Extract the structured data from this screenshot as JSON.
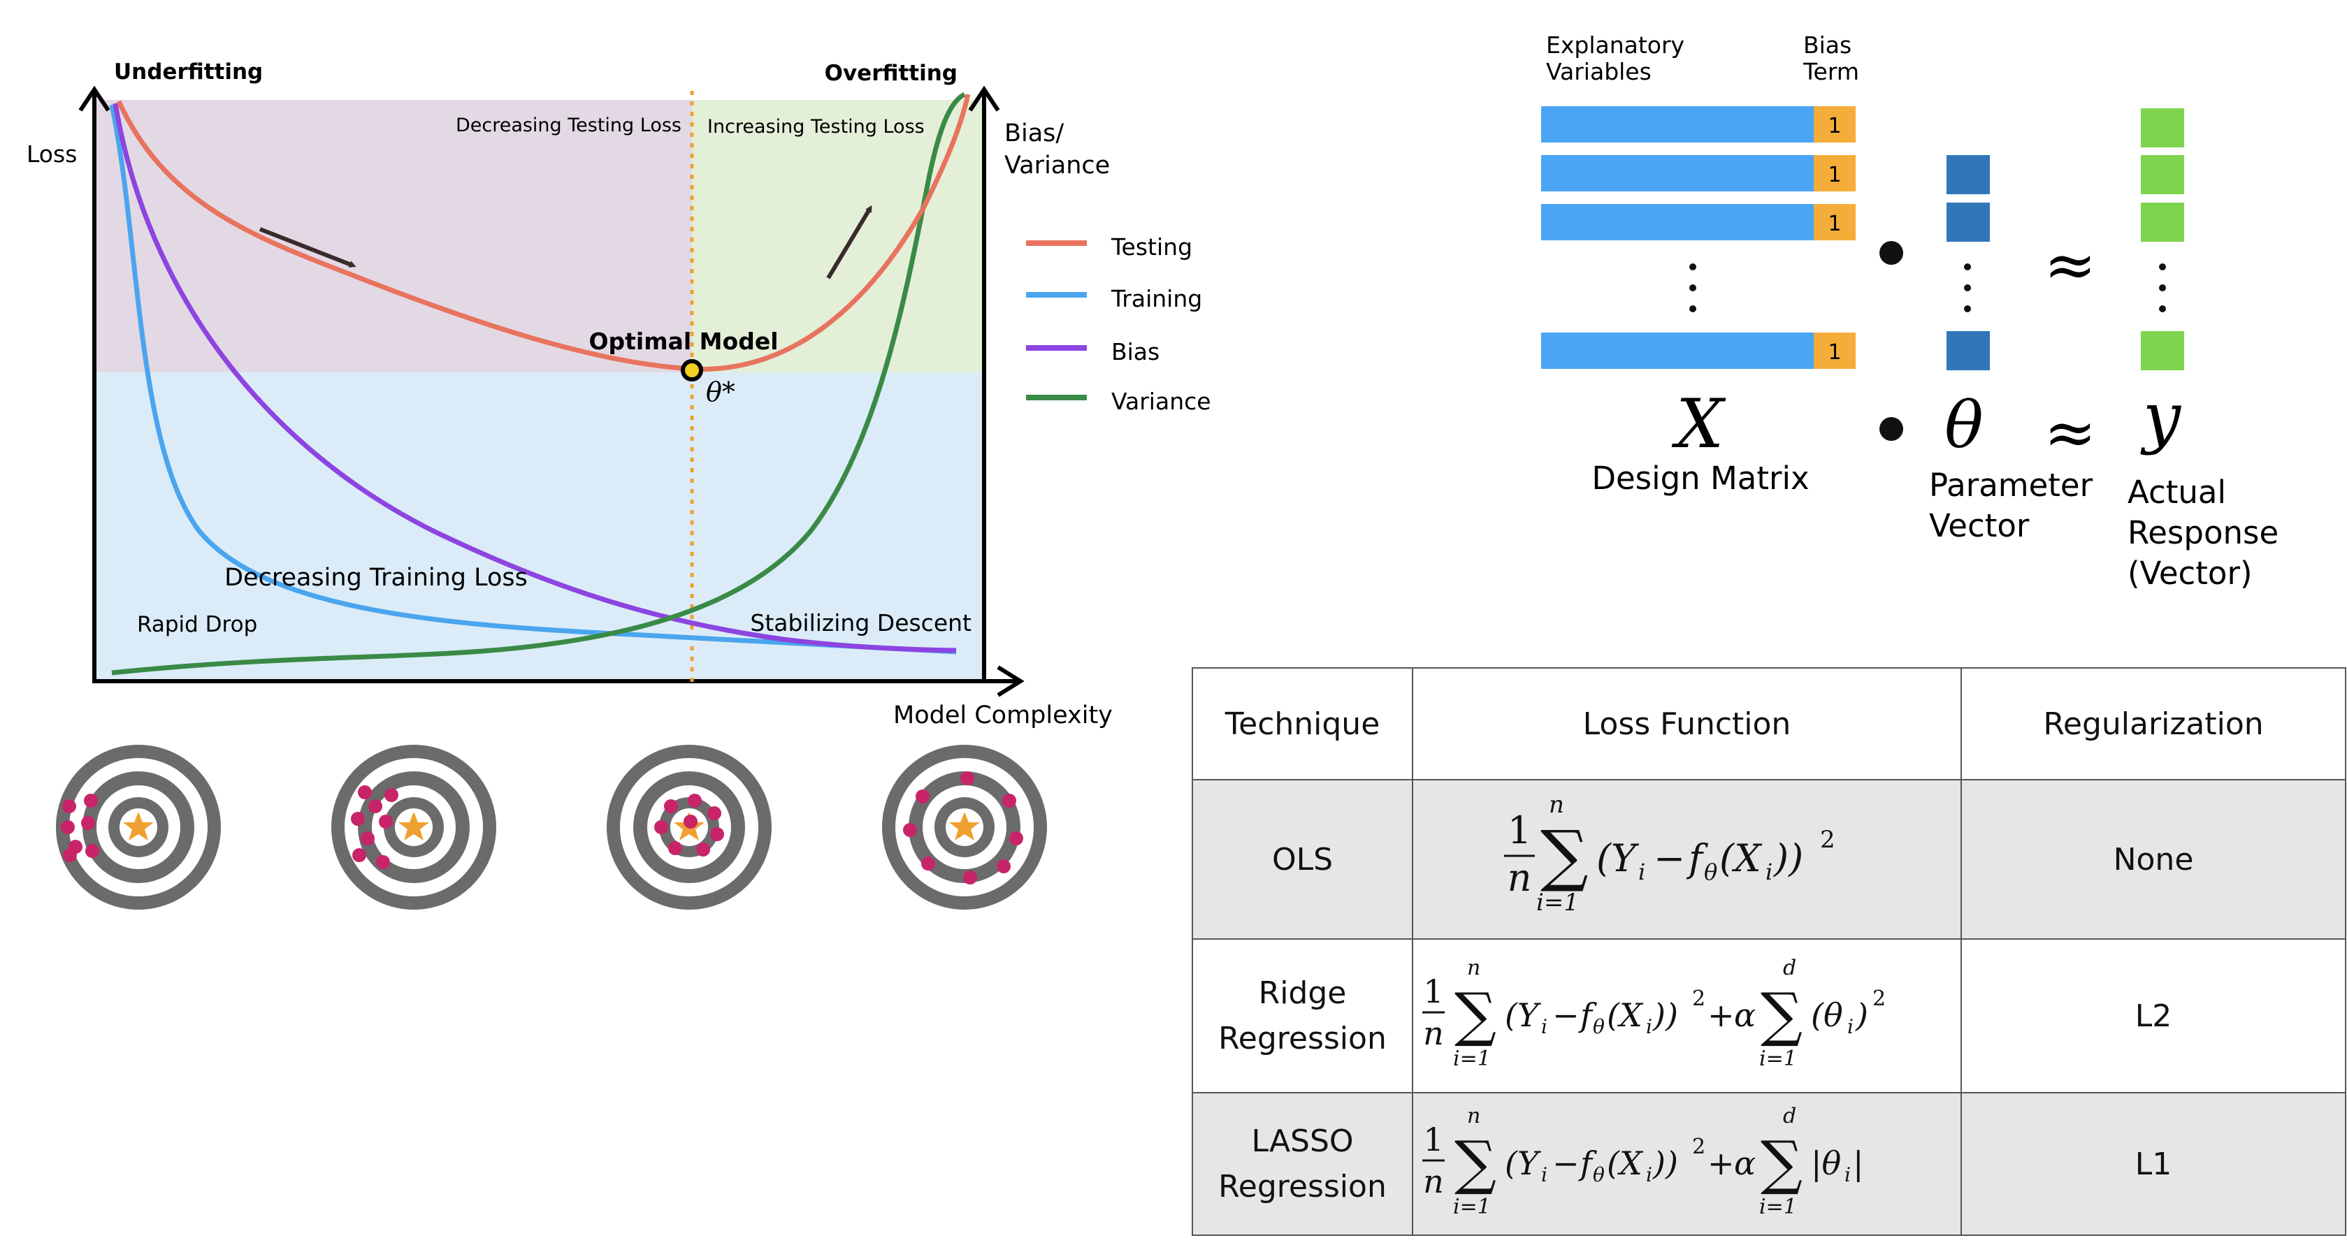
{
  "tradeoff": {
    "left_label": "Underfitting",
    "right_label": "Overfitting",
    "y_axis_left": "Loss",
    "y_axis_right_line1": "Bias/",
    "y_axis_right_line2": "Variance",
    "x_axis": "Model Complexity",
    "region_left": "Decreasing Testing Loss",
    "region_right": "Increasing Testing Loss",
    "optimal_label": "Optimal Model",
    "theta_star": "θ*",
    "decreasing_training": "Decreasing Training Loss",
    "rapid_drop": "Rapid Drop",
    "stabilizing": "Stabilizing Descent",
    "legend": [
      {
        "label": "Testing",
        "color": "#e8735e"
      },
      {
        "label": "Training",
        "color": "#4aa5ee"
      },
      {
        "label": "Bias",
        "color": "#8d44e0"
      },
      {
        "label": "Variance",
        "color": "#3a8a47"
      }
    ],
    "colors": {
      "testing": "#e8735e",
      "training": "#4aa5ee",
      "bias": "#8d44e0",
      "variance": "#3a8a47",
      "bg_top_left": "#e3d9e4",
      "bg_top_right": "#e4efd8",
      "bg_bottom": "#dbecf8",
      "optimal_line": "#f0a030",
      "dart": "#c8246a",
      "star": "#f0a030",
      "ring": "#6b6b6b"
    }
  },
  "matrix": {
    "explanatory_line1": "Explanatory",
    "explanatory_line2": "Variables",
    "bias_line1": "Bias",
    "bias_line2": "Term",
    "bias_value": "1",
    "dot": "•",
    "approx": "≈",
    "X_symbol": "X",
    "X_label": "Design Matrix",
    "theta_symbol": "θ",
    "theta_label_line1": "Parameter",
    "theta_label_line2": "Vector",
    "y_symbol": "y",
    "y_label_line1": "Actual",
    "y_label_line2": "Response",
    "y_label_line3": "(Vector)",
    "colors": {
      "x_bar": "#4aa5f5",
      "bias": "#f5ad3a",
      "theta": "#3276ba",
      "y": "#7ed44e"
    }
  },
  "table": {
    "headers": [
      "Technique",
      "Loss Function",
      "Regularization"
    ],
    "rows": [
      {
        "technique_line1": "OLS",
        "technique_line2": "",
        "regularization": "None"
      },
      {
        "technique_line1": "Ridge",
        "technique_line2": "Regression",
        "regularization": "L2"
      },
      {
        "technique_line1": "LASSO",
        "technique_line2": "Regression",
        "regularization": "L1"
      }
    ]
  }
}
